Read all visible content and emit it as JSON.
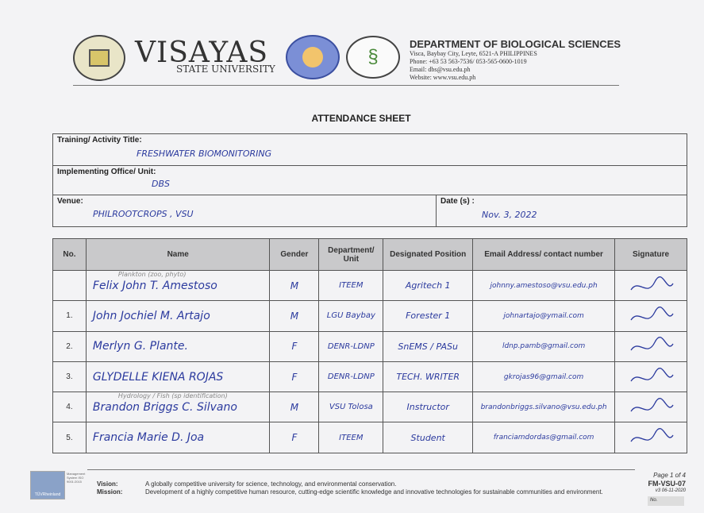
{
  "header": {
    "university": "VISAYAS",
    "university_sub": "STATE UNIVERSITY",
    "department": "DEPARTMENT OF BIOLOGICAL SCIENCES",
    "address": "Visca, Baybay City, Leyte, 6521-A PHILIPPINES",
    "phone": "Phone: +63 53 563-7536/ 053-565-0600-1019",
    "email": "Email: dbs@vsu.edu.ph",
    "website": "Website: www.vsu.edu.ph"
  },
  "title": "ATTENDANCE SHEET",
  "info": {
    "training_label": "Training/ Activity Title:",
    "training_value": "FRESHWATER BIOMONITORING",
    "office_label": "Implementing Office/ Unit:",
    "office_value": "DBS",
    "venue_label": "Venue:",
    "venue_value": "PHILROOTCROPS , VSU",
    "date_label": "Date (s) :",
    "date_value": "Nov. 3, 2022"
  },
  "table": {
    "headers": [
      "No.",
      "Name",
      "Gender",
      "Department/ Unit",
      "Designated Position",
      "Email Address/ contact number",
      "Signature"
    ],
    "rows": [
      {
        "no": "",
        "name": "Felix John T. Amestoso",
        "note": "Plankton (zoo, phyto)",
        "gender": "M",
        "dept": "ITEEM",
        "position": "Agritech 1",
        "email": "johnny.amestoso@vsu.edu.ph"
      },
      {
        "no": "1.",
        "name": "John Jochiel M. Artajo",
        "gender": "M",
        "dept": "LGU Baybay",
        "position": "Forester 1",
        "email": "johnartajo@ymail.com"
      },
      {
        "no": "2.",
        "name": "Merlyn G. Plante.",
        "gender": "F",
        "dept": "DENR-LDNP",
        "position": "SnEMS / PASu",
        "email": "ldnp.pamb@gmail.com"
      },
      {
        "no": "3.",
        "name": "GLYDELLE KIENA ROJAS",
        "gender": "F",
        "dept": "DENR-LDNP",
        "position": "TECH. WRITER",
        "email": "gkrojas96@gmail.com"
      },
      {
        "no": "4.",
        "name": "Brandon Briggs C. Silvano",
        "note": "Hydrology / Fish (sp identification)",
        "gender": "M",
        "dept": "VSU Tolosa",
        "position": "Instructor",
        "email": "brandonbriggs.silvano@vsu.edu.ph"
      },
      {
        "no": "5.",
        "name": "Francia Marie D. Joa",
        "gender": "F",
        "dept": "ITEEM",
        "position": "Student",
        "email": "franciamdordas@gmail.com"
      }
    ]
  },
  "footer": {
    "cert_label": "Management System ISO 9001:2015",
    "cert_brand": "TÜVRheinland",
    "vision_label": "Vision:",
    "vision": "A globally competitive university for science, technology, and environmental conservation.",
    "mission_label": "Mission:",
    "mission": "Development of a highly competitive human resource, cutting-edge scientific knowledge and innovative technologies for sustainable communities and environment.",
    "page": "Page 1 of 4",
    "form_code": "FM-VSU-07",
    "version": "v3 06-11-2020",
    "no_label": "No."
  }
}
